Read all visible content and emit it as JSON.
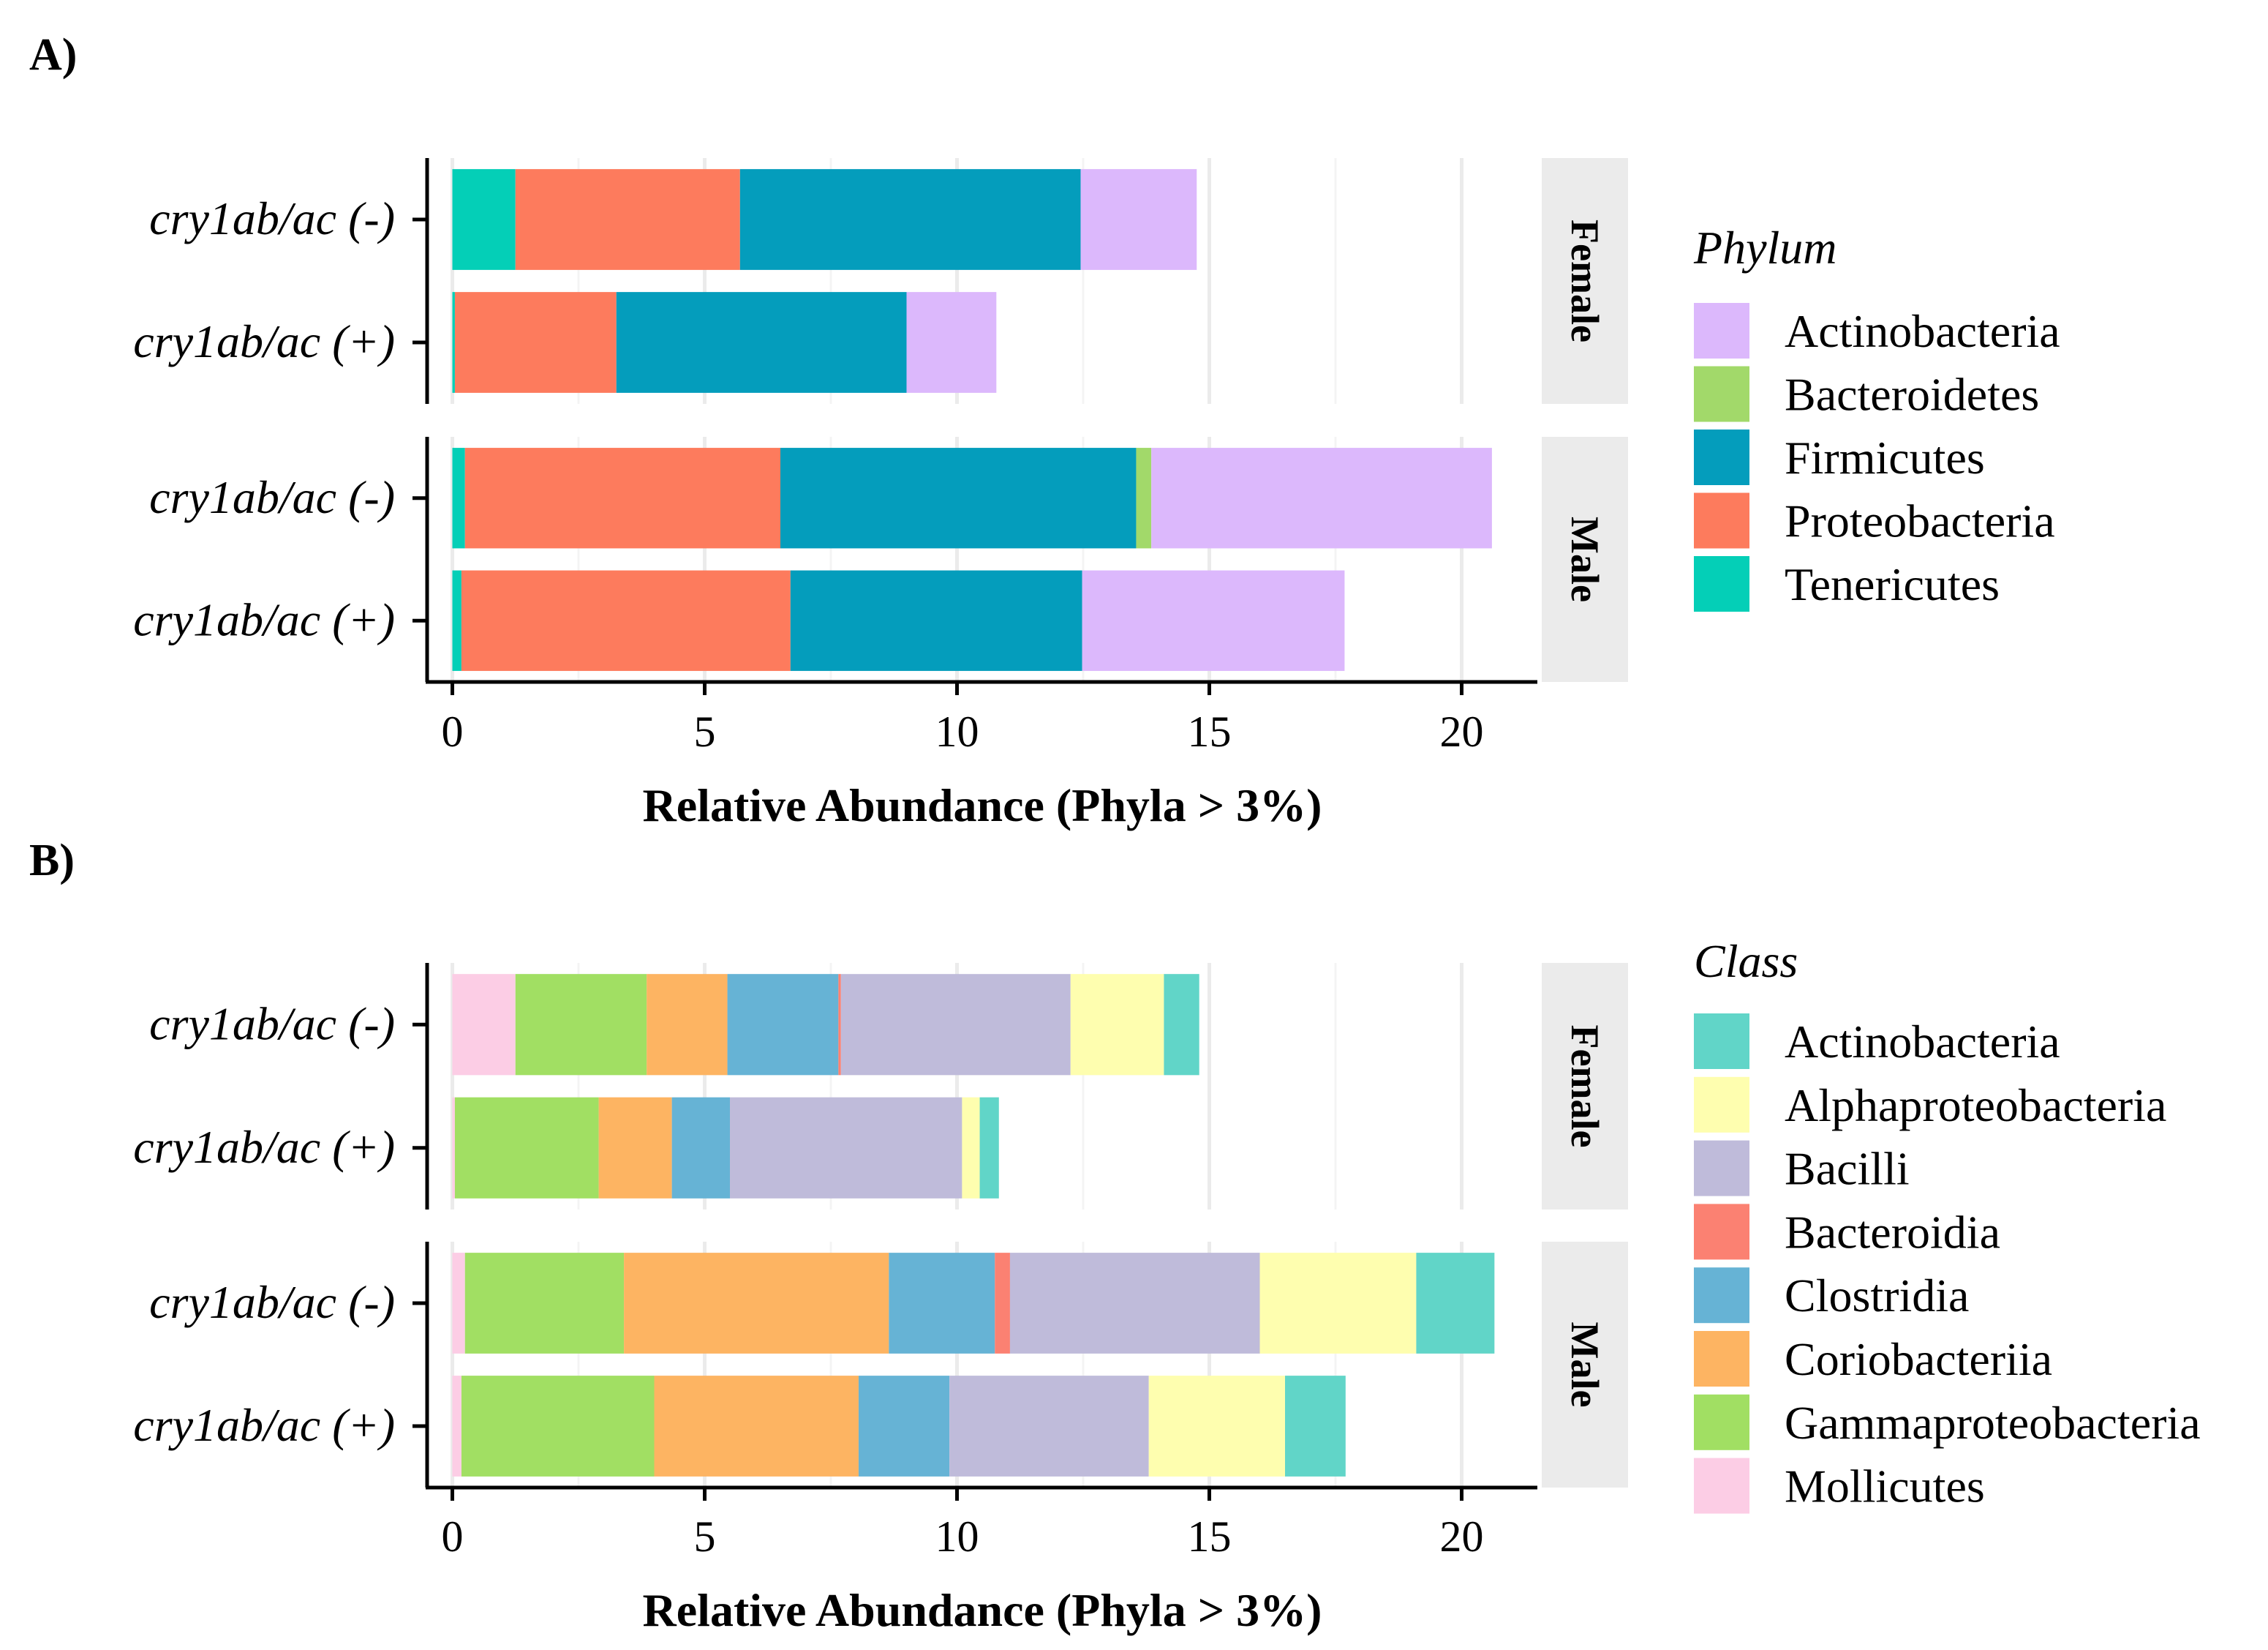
{
  "panel_labels": [
    "A)",
    "B)"
  ],
  "chart_data": [
    {
      "type": "bar",
      "orientation": "horizontal",
      "stacked": true,
      "panel": "A)",
      "xlabel": "Relative Abundance (Phyla > 3%)",
      "xlim": [
        -0.5,
        21.5
      ],
      "xticks": [
        0,
        5,
        10,
        15,
        20
      ],
      "grid": true,
      "legend_title": "Phylum",
      "legend": [
        "Actinobacteria",
        "Bacteroidetes",
        "Firmicutes",
        "Proteobacteria",
        "Tenericutes"
      ],
      "colors": {
        "Actinobacteria": "#dcb8fc",
        "Bacteroidetes": "#a2d96a",
        "Firmicutes": "#049dbc",
        "Proteobacteria": "#fd7b5d",
        "Tenericutes": "#04cfb7"
      },
      "stack_order": [
        "Tenericutes",
        "Proteobacteria",
        "Firmicutes",
        "Bacteroidetes",
        "Actinobacteria"
      ],
      "facets": [
        {
          "name": "Female",
          "categories": [
            "cry1ab/ac (-)",
            "cry1ab/ac (+)"
          ],
          "series": [
            {
              "name": "Tenericutes",
              "values": [
                1.25,
                0.05
              ]
            },
            {
              "name": "Proteobacteria",
              "values": [
                4.45,
                3.2
              ]
            },
            {
              "name": "Firmicutes",
              "values": [
                6.75,
                5.75
              ]
            },
            {
              "name": "Bacteroidetes",
              "values": [
                0.0,
                0.0
              ]
            },
            {
              "name": "Actinobacteria",
              "values": [
                2.3,
                1.78
              ]
            }
          ]
        },
        {
          "name": "Male",
          "categories": [
            "cry1ab/ac (-)",
            "cry1ab/ac (+)"
          ],
          "series": [
            {
              "name": "Tenericutes",
              "values": [
                0.25,
                0.18
              ]
            },
            {
              "name": "Proteobacteria",
              "values": [
                6.25,
                6.52
              ]
            },
            {
              "name": "Firmicutes",
              "values": [
                7.05,
                5.78
              ]
            },
            {
              "name": "Bacteroidetes",
              "values": [
                0.3,
                0.0
              ]
            },
            {
              "name": "Actinobacteria",
              "values": [
                6.75,
                5.2
              ]
            }
          ]
        }
      ]
    },
    {
      "type": "bar",
      "orientation": "horizontal",
      "stacked": true,
      "panel": "B)",
      "xlabel": "Relative Abundance (Phyla > 3%)",
      "xlim": [
        -0.5,
        21.5
      ],
      "xticks": [
        0,
        5,
        10,
        15,
        20
      ],
      "grid": true,
      "legend_title": "Class",
      "legend": [
        "Actinobacteria",
        "Alphaproteobacteria",
        "Bacilli",
        "Bacteroidia",
        "Clostridia",
        "Coriobacteriia",
        "Gammaproteobacteria",
        "Mollicutes"
      ],
      "colors": {
        "Actinobacteria": "#61d5c8",
        "Alphaproteobacteria": "#fefeaf",
        "Bacilli": "#bfbbda",
        "Bacteroidia": "#fb8172",
        "Clostridia": "#66b3d5",
        "Coriobacteriia": "#fdb462",
        "Gammaproteobacteria": "#a1df63",
        "Mollicutes": "#fccde5"
      },
      "stack_order": [
        "Mollicutes",
        "Gammaproteobacteria",
        "Coriobacteriia",
        "Clostridia",
        "Bacteroidia",
        "Bacilli",
        "Alphaproteobacteria",
        "Actinobacteria"
      ],
      "facets": [
        {
          "name": "Female",
          "categories": [
            "cry1ab/ac (-)",
            "cry1ab/ac (+)"
          ],
          "series": [
            {
              "name": "Mollicutes",
              "values": [
                1.25,
                0.05
              ]
            },
            {
              "name": "Gammaproteobacteria",
              "values": [
                2.6,
                2.85
              ]
            },
            {
              "name": "Coriobacteriia",
              "values": [
                1.6,
                1.45
              ]
            },
            {
              "name": "Clostridia",
              "values": [
                2.2,
                1.15
              ]
            },
            {
              "name": "Bacteroidia",
              "values": [
                0.05,
                0.0
              ]
            },
            {
              "name": "Bacilli",
              "values": [
                4.55,
                4.6
              ]
            },
            {
              "name": "Alphaproteobacteria",
              "values": [
                1.85,
                0.35
              ]
            },
            {
              "name": "Actinobacteria",
              "values": [
                0.7,
                0.38
              ]
            }
          ]
        },
        {
          "name": "Male",
          "categories": [
            "cry1ab/ac (-)",
            "cry1ab/ac (+)"
          ],
          "series": [
            {
              "name": "Mollicutes",
              "values": [
                0.25,
                0.18
              ]
            },
            {
              "name": "Gammaproteobacteria",
              "values": [
                3.15,
                3.82
              ]
            },
            {
              "name": "Coriobacteriia",
              "values": [
                5.25,
                4.05
              ]
            },
            {
              "name": "Clostridia",
              "values": [
                2.1,
                1.8
              ]
            },
            {
              "name": "Bacteroidia",
              "values": [
                0.3,
                0.0
              ]
            },
            {
              "name": "Bacilli",
              "values": [
                4.95,
                3.95
              ]
            },
            {
              "name": "Alphaproteobacteria",
              "values": [
                3.1,
                2.7
              ]
            },
            {
              "name": "Actinobacteria",
              "values": [
                1.55,
                1.2
              ]
            }
          ]
        }
      ]
    }
  ]
}
